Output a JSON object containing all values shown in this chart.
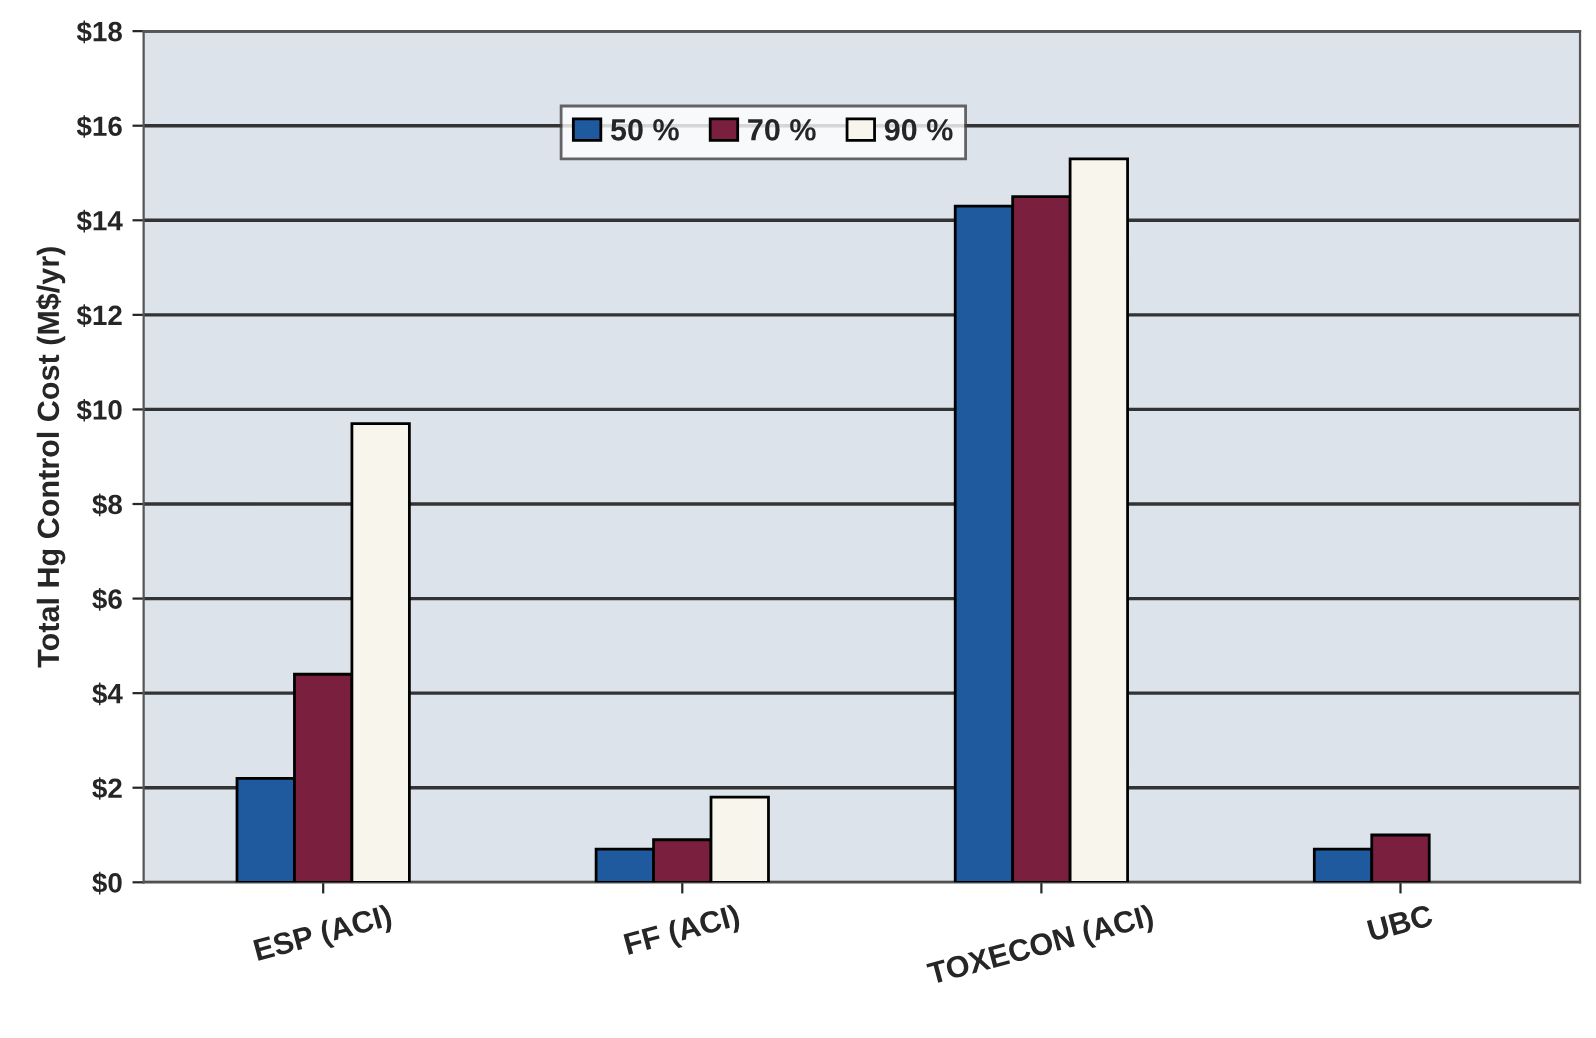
{
  "chart_data": {
    "type": "bar",
    "ylabel": "Total Hg Control Cost (M$/yr)",
    "categories": [
      "ESP (ACI)",
      "FF (ACI)",
      "TOXECON (ACI)",
      "UBC"
    ],
    "series": [
      {
        "name": "50 %",
        "color": "#1f5a9e",
        "values": [
          2.2,
          0.7,
          14.3,
          0.7
        ]
      },
      {
        "name": "70 %",
        "color": "#7a1f3d",
        "values": [
          4.4,
          0.9,
          14.5,
          1.0
        ]
      },
      {
        "name": "90 %",
        "color": "#f8f6ec",
        "values": [
          9.7,
          1.8,
          15.3,
          null
        ]
      }
    ],
    "ylim": [
      0,
      18
    ],
    "yticks": [
      {
        "value": 0,
        "label": "$0"
      },
      {
        "value": 2,
        "label": "$2"
      },
      {
        "value": 4,
        "label": "$4"
      },
      {
        "value": 6,
        "label": "$6"
      },
      {
        "value": 8,
        "label": "$8"
      },
      {
        "value": 10,
        "label": "$10"
      },
      {
        "value": 12,
        "label": "$12"
      },
      {
        "value": 14,
        "label": "$14"
      },
      {
        "value": 16,
        "label": "$16"
      },
      {
        "value": 18,
        "label": "$18"
      }
    ],
    "grid": "y",
    "legend": "top left"
  }
}
